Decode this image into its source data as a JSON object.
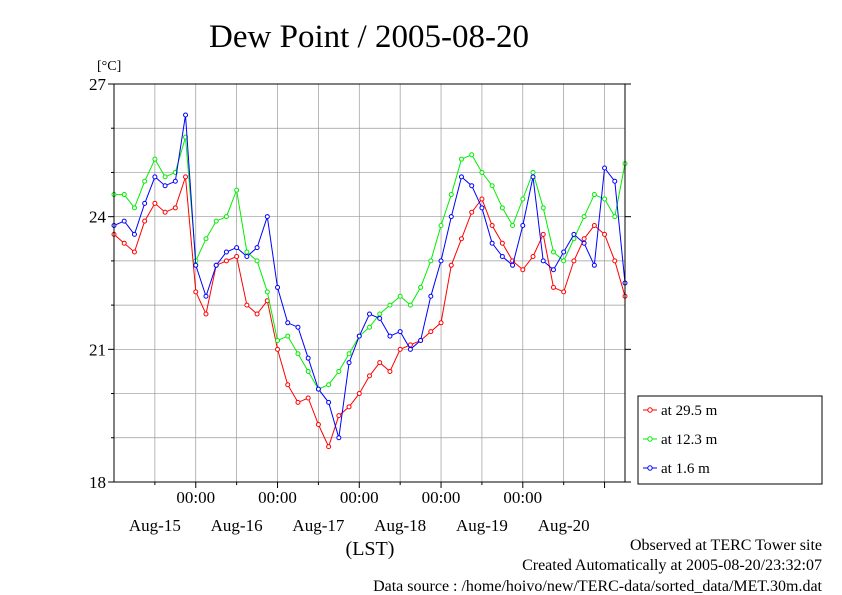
{
  "chart_data": {
    "type": "line",
    "title": "Dew Point / 2005-08-20",
    "ylabel": "[°C]",
    "xlabel": "(LST)",
    "ylim": [
      18,
      27
    ],
    "yticks": [
      18,
      21,
      24,
      27
    ],
    "x_hour_range": [
      -24,
      126
    ],
    "time_labels": [
      "00:00",
      "00:00",
      "00:00",
      "00:00",
      "00:00"
    ],
    "date_labels": [
      "Aug-15",
      "Aug-16",
      "Aug-17",
      "Aug-18",
      "Aug-19",
      "Aug-20"
    ],
    "grid": true,
    "legend_position": "right",
    "series": [
      {
        "name": "at 29.5 m",
        "color": "#ff0000",
        "x": [
          -24,
          -21,
          -18,
          -15,
          -12,
          -9,
          -6,
          -3,
          0,
          3,
          6,
          9,
          12,
          15,
          18,
          21,
          24,
          27,
          30,
          33,
          36,
          39,
          42,
          45,
          48,
          51,
          54,
          57,
          60,
          63,
          66,
          69,
          72,
          75,
          78,
          81,
          84,
          87,
          90,
          93,
          96,
          99,
          102,
          105,
          108,
          111,
          114,
          117,
          120,
          123,
          126
        ],
        "y": [
          23.6,
          23.4,
          23.2,
          23.9,
          24.3,
          24.1,
          24.2,
          24.9,
          22.3,
          21.8,
          22.9,
          23.0,
          23.1,
          22.0,
          21.8,
          22.1,
          21.0,
          20.2,
          19.8,
          19.9,
          19.3,
          18.8,
          19.5,
          19.7,
          20.0,
          20.4,
          20.7,
          20.5,
          21.0,
          21.1,
          21.2,
          21.4,
          21.6,
          22.9,
          23.5,
          24.1,
          24.4,
          23.8,
          23.4,
          23.0,
          22.8,
          23.1,
          23.6,
          22.4,
          22.3,
          23.0,
          23.5,
          23.8,
          23.6,
          23.0,
          22.2
        ]
      },
      {
        "name": "at 12.3 m",
        "color": "#00ee00",
        "x": [
          -24,
          -21,
          -18,
          -15,
          -12,
          -9,
          -6,
          -3,
          0,
          3,
          6,
          9,
          12,
          15,
          18,
          21,
          24,
          27,
          30,
          33,
          36,
          39,
          42,
          45,
          48,
          51,
          54,
          57,
          60,
          63,
          66,
          69,
          72,
          75,
          78,
          81,
          84,
          87,
          90,
          93,
          96,
          99,
          102,
          105,
          108,
          111,
          114,
          117,
          120,
          123,
          126
        ],
        "y": [
          24.5,
          24.5,
          24.2,
          24.8,
          25.3,
          24.9,
          25.0,
          25.8,
          23.0,
          23.5,
          23.9,
          24.0,
          24.6,
          23.2,
          23.0,
          22.3,
          21.2,
          21.3,
          20.9,
          20.5,
          20.1,
          20.2,
          20.5,
          20.9,
          21.3,
          21.5,
          21.8,
          22.0,
          22.2,
          22.0,
          22.4,
          23.0,
          23.8,
          24.5,
          25.3,
          25.4,
          25.0,
          24.7,
          24.2,
          23.8,
          24.4,
          25.0,
          24.2,
          23.2,
          23.0,
          23.5,
          24.0,
          24.5,
          24.4,
          24.0,
          25.2
        ]
      },
      {
        "name": "at 1.6 m",
        "color": "#0000ff",
        "x": [
          -24,
          -21,
          -18,
          -15,
          -12,
          -9,
          -6,
          -3,
          0,
          3,
          6,
          9,
          12,
          15,
          18,
          21,
          24,
          27,
          30,
          33,
          36,
          39,
          42,
          45,
          48,
          51,
          54,
          57,
          60,
          63,
          66,
          69,
          72,
          75,
          78,
          81,
          84,
          87,
          90,
          93,
          96,
          99,
          102,
          105,
          108,
          111,
          114,
          117,
          120,
          123,
          126
        ],
        "y": [
          23.8,
          23.9,
          23.6,
          24.3,
          24.9,
          24.7,
          24.8,
          26.3,
          22.9,
          22.2,
          22.9,
          23.2,
          23.3,
          23.1,
          23.3,
          24.0,
          22.4,
          21.6,
          21.5,
          20.8,
          20.1,
          19.8,
          19.0,
          20.7,
          21.3,
          21.8,
          21.7,
          21.3,
          21.4,
          21.0,
          21.2,
          22.2,
          23.0,
          24.0,
          24.9,
          24.7,
          24.2,
          23.4,
          23.1,
          22.9,
          23.8,
          24.9,
          23.0,
          22.8,
          23.2,
          23.6,
          23.4,
          22.9,
          25.1,
          24.8,
          22.5
        ]
      }
    ]
  },
  "footer": {
    "line1": "Observed at TERC Tower site",
    "line2": "Created Automatically at 2005-08-20/23:32:07",
    "line3": "Data source : /home/hoivo/new/TERC-data/sorted_data/MET.30m.dat"
  }
}
